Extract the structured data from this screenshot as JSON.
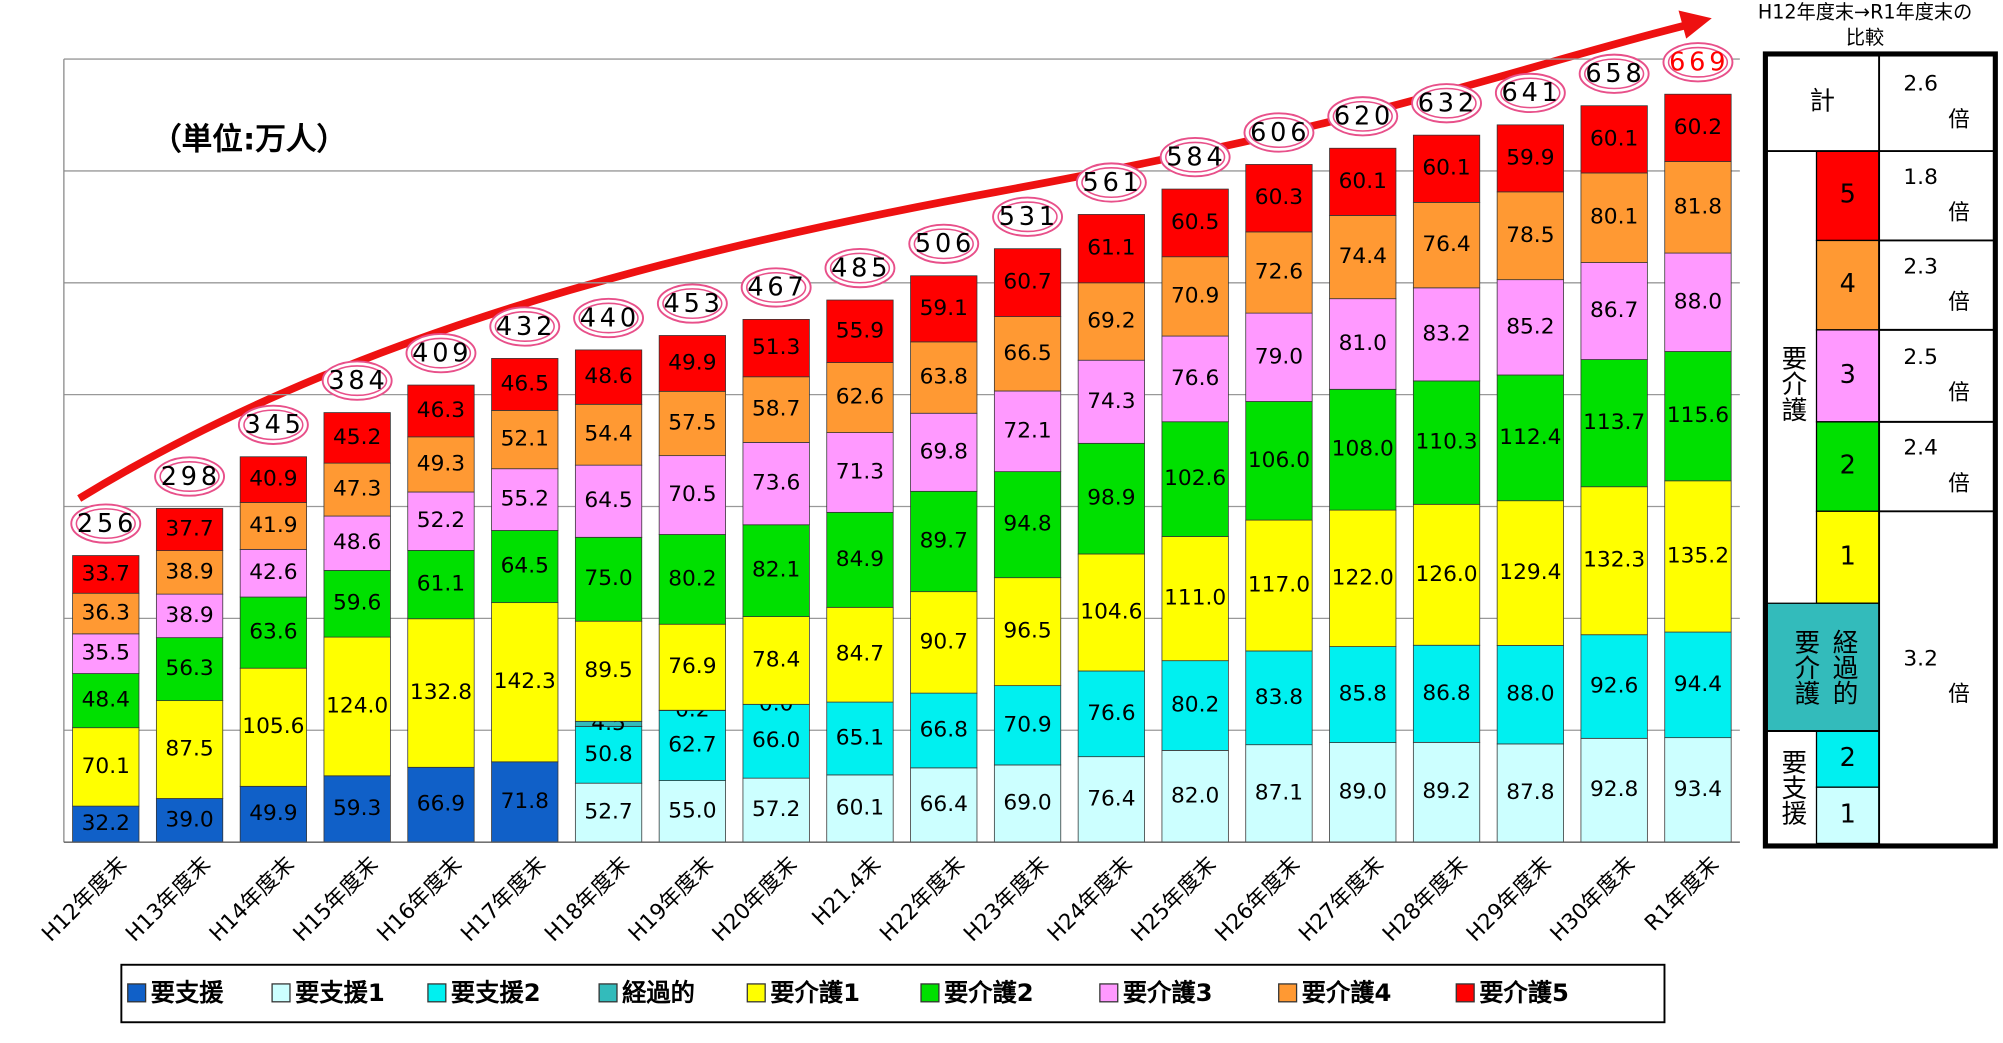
{
  "chart_data": {
    "type": "stacked_bar",
    "unit_label": "（単位:万人）",
    "categories": [
      "H12年度末",
      "H13年度末",
      "H14年度末",
      "H15年度末",
      "H16年度末",
      "H17年度末",
      "H18年度末",
      "H19年度末",
      "H20年度末",
      "H21.4末",
      "H22年度末",
      "H23年度末",
      "H24年度末",
      "H25年度末",
      "H26年度末",
      "H27年度末",
      "H28年度末",
      "H29年度末",
      "H30年度末",
      "R1年度末"
    ],
    "totals": [
      256,
      298,
      345,
      384,
      409,
      432,
      440,
      453,
      467,
      485,
      506,
      531,
      561,
      584,
      606,
      620,
      632,
      641,
      658,
      669
    ],
    "ylim": [
      0,
      700
    ],
    "yticks": [
      0,
      100,
      200,
      300,
      400,
      500,
      600,
      700
    ],
    "grid": true,
    "series": [
      {
        "name": "要支援",
        "color": "#1060c8",
        "values": [
          32.2,
          39.0,
          49.9,
          59.3,
          66.9,
          71.8,
          null,
          null,
          null,
          null,
          null,
          null,
          null,
          null,
          null,
          null,
          null,
          null,
          null,
          null
        ],
        "value_labels": [
          "32.2",
          "39.0",
          "49.9",
          "59.3",
          "66.9",
          "71.8",
          null,
          null,
          null,
          null,
          null,
          null,
          null,
          null,
          null,
          null,
          null,
          null,
          null,
          null
        ]
      },
      {
        "name": "要支援1",
        "color": "#ccffff",
        "values": [
          null,
          null,
          null,
          null,
          null,
          null,
          52.7,
          55.0,
          57.2,
          60.1,
          66.4,
          69.0,
          76.4,
          82.0,
          87.1,
          89.0,
          89.2,
          87.8,
          92.8,
          93.4
        ],
        "value_labels": [
          null,
          null,
          null,
          null,
          null,
          null,
          "52.7",
          "55.0",
          "57.2",
          "60.1",
          "66.4",
          "69.0",
          "76.4",
          "82.0",
          "87.1",
          "89.0",
          "89.2",
          "87.8",
          "92.8",
          "93.4"
        ]
      },
      {
        "name": "要支援2",
        "color": "#00f0f0",
        "values": [
          null,
          null,
          null,
          null,
          null,
          null,
          50.8,
          62.7,
          66.0,
          65.1,
          66.8,
          70.9,
          76.6,
          80.2,
          83.8,
          85.8,
          86.8,
          88.0,
          92.6,
          94.4
        ],
        "value_labels": [
          null,
          null,
          null,
          null,
          null,
          null,
          "50.8",
          "62.7",
          "66.0",
          "65.1",
          "66.8",
          "70.9",
          "76.6",
          "80.2",
          "83.8",
          "85.8",
          "86.8",
          "88.0",
          "92.6",
          "94.4"
        ]
      },
      {
        "name": "経過的",
        "color": "#33bbbb",
        "values": [
          null,
          null,
          null,
          null,
          null,
          null,
          4.5,
          0.2,
          0.0,
          null,
          null,
          null,
          null,
          null,
          null,
          null,
          null,
          null,
          null,
          null
        ],
        "value_labels": [
          null,
          null,
          null,
          null,
          null,
          null,
          "4.5",
          "0.2",
          "0.0",
          null,
          null,
          null,
          null,
          null,
          null,
          null,
          null,
          null,
          null,
          null
        ]
      },
      {
        "name": "要介護1",
        "color": "#ffff00",
        "values": [
          70.1,
          87.5,
          105.6,
          124.0,
          132.8,
          142.3,
          89.5,
          76.9,
          78.4,
          84.7,
          90.7,
          96.5,
          104.6,
          111.0,
          117.0,
          122.0,
          126.0,
          129.4,
          132.3,
          135.2
        ],
        "value_labels": [
          "70.1",
          "87.5",
          "105.6",
          "124.0",
          "132.8",
          "142.3",
          "89.5",
          "76.9",
          "78.4",
          "84.7",
          "90.7",
          "96.5",
          "104.6",
          "111.0",
          "117.0",
          "122.0",
          "126.0",
          "129.4",
          "132.3",
          "135.2"
        ]
      },
      {
        "name": "要介護2",
        "color": "#00e000",
        "values": [
          48.4,
          56.3,
          63.6,
          59.6,
          61.1,
          64.5,
          75.0,
          80.2,
          82.1,
          84.9,
          89.7,
          94.8,
          98.9,
          102.6,
          106.0,
          108.0,
          110.3,
          112.4,
          113.7,
          115.6
        ],
        "value_labels": [
          "48.4",
          "56.3",
          "63.6",
          "59.6",
          "61.1",
          "64.5",
          "75.0",
          "80.2",
          "82.1",
          "84.9",
          "89.7",
          "94.8",
          "98.9",
          "102.6",
          "106.0",
          "108.0",
          "110.3",
          "112.4",
          "113.7",
          "115.6"
        ]
      },
      {
        "name": "要介護3",
        "color": "#ff99ff",
        "values": [
          35.5,
          38.9,
          42.6,
          48.6,
          52.2,
          55.2,
          64.5,
          70.5,
          73.6,
          71.3,
          69.8,
          72.1,
          74.3,
          76.6,
          79.0,
          81.0,
          83.2,
          85.2,
          86.7,
          88.0
        ],
        "value_labels": [
          "35.5",
          "38.9",
          "42.6",
          "48.6",
          "52.2",
          "55.2",
          "64.5",
          "70.5",
          "73.6",
          "71.3",
          "69.8",
          "72.1",
          "74.3",
          "76.6",
          "79.0",
          "81.0",
          "83.2",
          "85.2",
          "86.7",
          "88.0"
        ]
      },
      {
        "name": "要介護4",
        "color": "#ff9933",
        "values": [
          36.3,
          38.9,
          41.9,
          47.3,
          49.3,
          52.1,
          54.4,
          57.5,
          58.7,
          62.6,
          63.8,
          66.5,
          69.2,
          70.9,
          72.6,
          74.4,
          76.4,
          78.5,
          80.1,
          81.8
        ],
        "value_labels": [
          "36.3",
          "38.9",
          "41.9",
          "47.3",
          "49.3",
          "52.1",
          "54.4",
          "57.5",
          "58.7",
          "62.6",
          "63.8",
          "66.5",
          "69.2",
          "70.9",
          "72.6",
          "74.4",
          "76.4",
          "78.5",
          "80.1",
          "81.8"
        ]
      },
      {
        "name": "要介護5",
        "color": "#ff0000",
        "values": [
          33.7,
          37.7,
          40.9,
          45.2,
          46.3,
          46.5,
          48.6,
          49.9,
          51.3,
          55.9,
          59.1,
          60.7,
          61.1,
          60.5,
          60.3,
          60.1,
          60.1,
          59.9,
          60.1,
          60.2
        ],
        "value_labels": [
          "33.7",
          "37.7",
          "40.9",
          "45.2",
          "46.3",
          "46.5",
          "48.6",
          "49.9",
          "51.3",
          "55.9",
          "59.1",
          "60.7",
          "61.1",
          "60.5",
          "60.3",
          "60.1",
          "60.1",
          "59.9",
          "60.1",
          "60.2"
        ]
      }
    ]
  },
  "comparison": {
    "title_lines": [
      "H12年度末→R1年度末の",
      "比較"
    ],
    "unit": "倍",
    "total": {
      "label": "計",
      "ratio": 2.6
    },
    "care_group": "要介護",
    "care": [
      {
        "label": "5",
        "ratio": 1.8
      },
      {
        "label": "4",
        "ratio": 2.3
      },
      {
        "label": "3",
        "ratio": 2.5
      },
      {
        "label": "2",
        "ratio": 2.4
      },
      {
        "label": "1"
      }
    ],
    "transitional": [
      "要介護",
      "経過的"
    ],
    "support_group": "要支援",
    "support": [
      {
        "label": "2"
      },
      {
        "label": "1"
      }
    ],
    "combined_ratio": 3.2
  }
}
